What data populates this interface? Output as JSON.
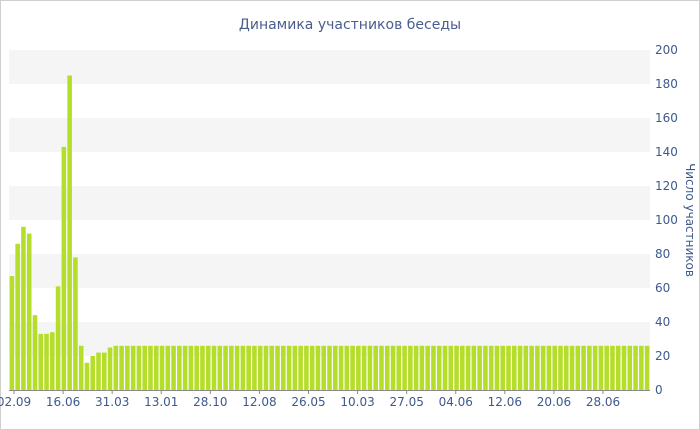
{
  "chart_data": {
    "type": "bar",
    "title": "Динамика участников беседы",
    "ylabel": "Число участников",
    "xlabel": "",
    "ylim": [
      0,
      200
    ],
    "y_ticks": [
      0,
      20,
      40,
      60,
      80,
      100,
      120,
      140,
      160,
      180,
      200
    ],
    "x_tick_labels": [
      "02.09",
      "16.06",
      "31.03",
      "13.01",
      "28.10",
      "12.08",
      "26.05",
      "10.03",
      "27.05",
      "04.06",
      "12.06",
      "20.06",
      "28.06"
    ],
    "grid": "horizontal alternating bands",
    "bar_color": "#b5de2b",
    "band_color": "#f5f5f5",
    "axis_text_color": "#3d5a8c",
    "values": [
      67,
      86,
      96,
      92,
      44,
      33,
      33,
      34,
      61,
      143,
      185,
      78,
      26,
      16,
      20,
      22,
      22,
      25,
      26,
      26,
      26,
      26,
      26,
      26,
      26,
      26,
      26,
      26,
      26,
      26,
      26,
      26,
      26,
      26,
      26,
      26,
      26,
      26,
      26,
      26,
      26,
      26,
      26,
      26,
      26,
      26,
      26,
      26,
      26,
      26,
      26,
      26,
      26,
      26,
      26,
      26,
      26,
      26,
      26,
      26,
      26,
      26,
      26,
      26,
      26,
      26,
      26,
      26,
      26,
      26,
      26,
      26,
      26,
      26,
      26,
      26,
      26,
      26,
      26,
      26,
      26,
      26,
      26,
      26,
      26,
      26,
      26,
      26,
      26,
      26,
      26,
      26,
      26,
      26,
      26,
      26,
      26,
      26,
      26,
      26,
      26,
      26,
      26,
      26,
      26,
      26,
      26,
      26,
      26,
      26,
      26
    ]
  }
}
